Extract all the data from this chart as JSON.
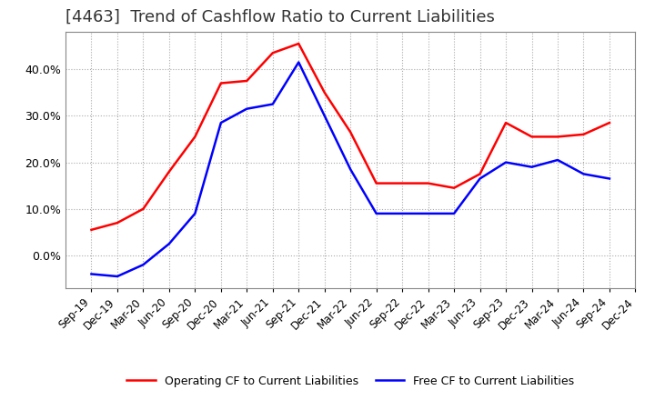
{
  "title": "[4463]  Trend of Cashflow Ratio to Current Liabilities",
  "x_labels": [
    "Sep-19",
    "Dec-19",
    "Mar-20",
    "Jun-20",
    "Sep-20",
    "Dec-20",
    "Mar-21",
    "Jun-21",
    "Sep-21",
    "Dec-21",
    "Mar-22",
    "Jun-22",
    "Sep-22",
    "Dec-22",
    "Mar-23",
    "Jun-23",
    "Sep-23",
    "Dec-23",
    "Mar-24",
    "Jun-24",
    "Sep-24",
    "Dec-24"
  ],
  "operating_cf": [
    0.055,
    0.07,
    0.1,
    0.18,
    0.255,
    0.37,
    0.375,
    0.435,
    0.455,
    0.35,
    0.265,
    0.155,
    0.155,
    0.155,
    0.145,
    0.175,
    0.285,
    0.255,
    0.255,
    0.26,
    0.285,
    null
  ],
  "free_cf": [
    -0.04,
    -0.045,
    -0.02,
    0.025,
    0.09,
    0.285,
    0.315,
    0.325,
    0.415,
    0.3,
    0.185,
    0.09,
    0.09,
    0.09,
    0.09,
    0.165,
    0.2,
    0.19,
    0.205,
    0.175,
    0.165,
    null
  ],
  "operating_color": "#ff0000",
  "free_color": "#0000ff",
  "ylim_min": -0.07,
  "ylim_max": 0.48,
  "background_color": "#ffffff",
  "grid_color": "#aaaaaa",
  "title_fontsize": 13,
  "legend_labels": [
    "Operating CF to Current Liabilities",
    "Free CF to Current Liabilities"
  ]
}
